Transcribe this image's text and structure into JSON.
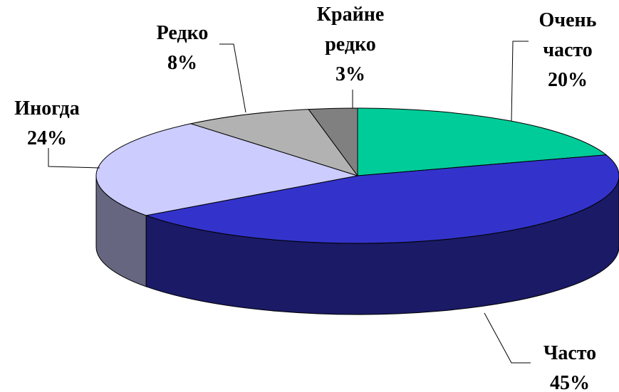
{
  "chart_data": {
    "type": "pie3d",
    "categories": [
      "Очень часто",
      "Часто",
      "Иногда",
      "Редко",
      "Крайне редко"
    ],
    "values": [
      20,
      45,
      24,
      8,
      3
    ],
    "value_labels": [
      "20%",
      "45%",
      "24%",
      "8%",
      "3%"
    ],
    "colors": [
      "#00cc99",
      "#3333cc",
      "#ccccff",
      "#b2b2b2",
      "#808080"
    ]
  }
}
